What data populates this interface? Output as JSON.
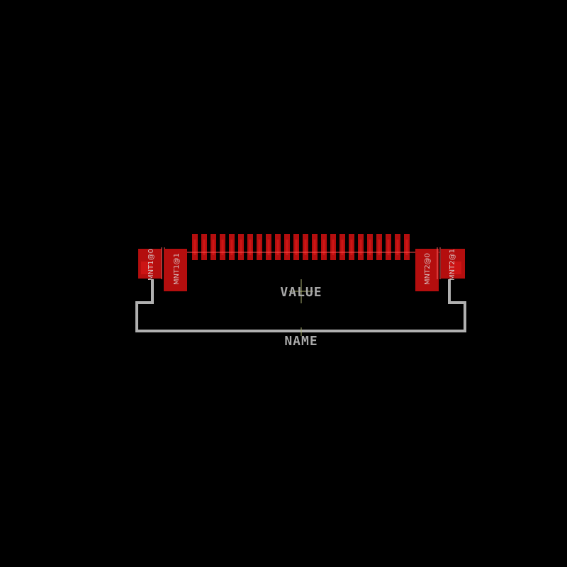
{
  "footprint": {
    "pin_count": 24,
    "labels": {
      "value": "VALUE",
      "name": "NAME"
    },
    "mount_pads": [
      {
        "label": "MNT1@0"
      },
      {
        "label": "MNT1@1"
      },
      {
        "label": "MNT2@0"
      },
      {
        "label": "MNT2@1"
      }
    ]
  },
  "colors": {
    "background": "#000000",
    "copper_pad": "#b40e0e",
    "pad_highlight": "#e01a1a",
    "silkscreen": "#b0b0b0",
    "origin_cross": "#aab070"
  }
}
